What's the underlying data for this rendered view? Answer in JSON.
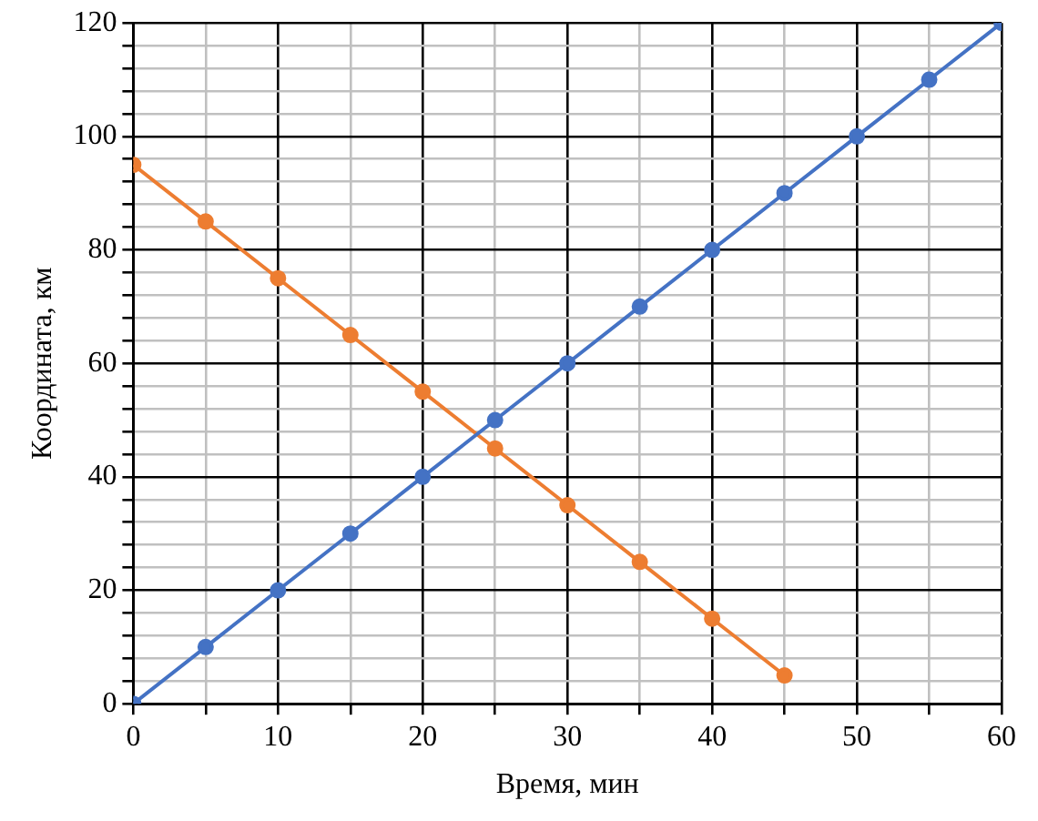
{
  "chart_data": {
    "type": "line",
    "xlabel": "Время, мин",
    "ylabel": "Координата, км",
    "xlim": [
      0,
      60
    ],
    "ylim": [
      0,
      120
    ],
    "xticks": [
      0,
      {
        "value": 5,
        "label": null
      },
      10,
      {
        "value": 15,
        "label": null
      },
      20,
      {
        "value": 25,
        "label": null
      },
      30,
      {
        "value": 35,
        "label": null
      },
      40,
      {
        "value": 45,
        "label": null
      },
      50,
      {
        "value": 55,
        "label": null
      },
      60
    ],
    "yticks": [
      0,
      {
        "value": 4,
        "label": null
      },
      {
        "value": 8,
        "label": null
      },
      {
        "value": 12,
        "label": null
      },
      {
        "value": 16,
        "label": null
      },
      20,
      {
        "value": 24,
        "label": null
      },
      {
        "value": 28,
        "label": null
      },
      {
        "value": 32,
        "label": null
      },
      {
        "value": 36,
        "label": null
      },
      40,
      {
        "value": 44,
        "label": null
      },
      {
        "value": 48,
        "label": null
      },
      {
        "value": 52,
        "label": null
      },
      {
        "value": 56,
        "label": null
      },
      60,
      {
        "value": 64,
        "label": null
      },
      {
        "value": 68,
        "label": null
      },
      {
        "value": 72,
        "label": null
      },
      {
        "value": 76,
        "label": null
      },
      80,
      {
        "value": 84,
        "label": null
      },
      {
        "value": 88,
        "label": null
      },
      {
        "value": 92,
        "label": null
      },
      {
        "value": 96,
        "label": null
      },
      100,
      {
        "value": 104,
        "label": null
      },
      {
        "value": 108,
        "label": null
      },
      {
        "value": 112,
        "label": null
      },
      {
        "value": 116,
        "label": null
      },
      120
    ],
    "grid": true,
    "legend": false,
    "marker": "circle",
    "line_style": "solid",
    "series": [
      {
        "color": "#4472c4",
        "x": [
          0,
          5,
          10,
          15,
          20,
          25,
          30,
          35,
          40,
          45,
          50,
          55,
          60
        ],
        "values": [
          0,
          10,
          20,
          30,
          40,
          50,
          60,
          70,
          80,
          90,
          100,
          110,
          120
        ]
      },
      {
        "color": "#ed7d31",
        "x": [
          0,
          5,
          10,
          15,
          20,
          25,
          30,
          35,
          40,
          45
        ],
        "values": [
          95,
          85,
          75,
          65,
          55,
          45,
          35,
          25,
          15,
          5
        ]
      }
    ]
  }
}
